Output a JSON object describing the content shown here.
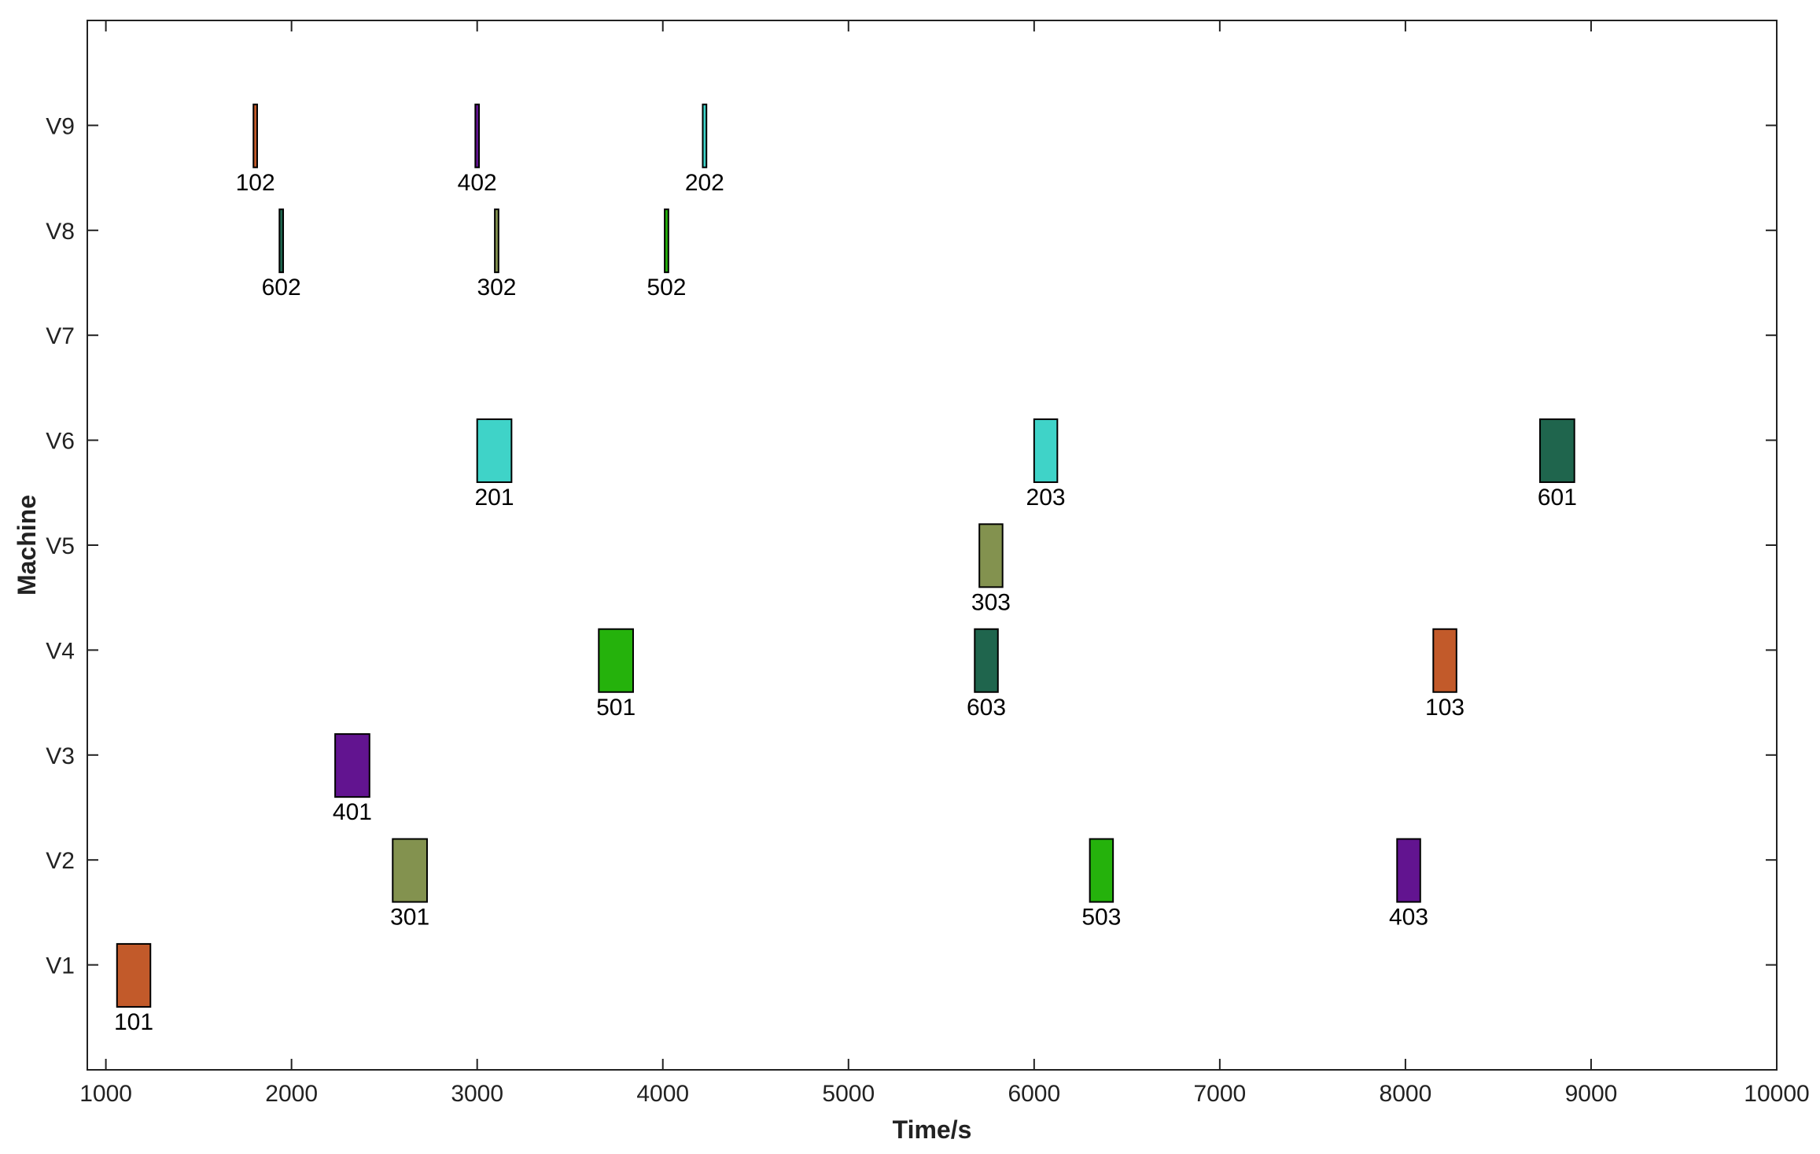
{
  "chart_data": {
    "type": "gantt",
    "title": "",
    "xlabel": "Time/s",
    "ylabel": "Machine",
    "xlim": [
      900,
      10000
    ],
    "ylim": [
      0,
      10
    ],
    "x_ticks": [
      1000,
      2000,
      3000,
      4000,
      5000,
      6000,
      7000,
      8000,
      9000,
      10000
    ],
    "y_categories": [
      "V1",
      "V2",
      "V3",
      "V4",
      "V5",
      "V6",
      "V7",
      "V8",
      "V9"
    ],
    "grid": false,
    "colors": {
      "job1": "#c25a2a",
      "job2": "#3fd3c8",
      "job3": "#83924f",
      "job4": "#621490",
      "job5": "#25b20c",
      "job6": "#1f654d"
    },
    "tasks": [
      {
        "label": "101",
        "machine": "V1",
        "start": 1060,
        "end": 1240,
        "color": "job1"
      },
      {
        "label": "102",
        "machine": "V9",
        "start": 1795,
        "end": 1815,
        "color": "job1"
      },
      {
        "label": "103",
        "machine": "V4",
        "start": 8150,
        "end": 8275,
        "color": "job1"
      },
      {
        "label": "201",
        "machine": "V6",
        "start": 3000,
        "end": 3185,
        "color": "job2"
      },
      {
        "label": "202",
        "machine": "V9",
        "start": 4215,
        "end": 4235,
        "color": "job2"
      },
      {
        "label": "203",
        "machine": "V6",
        "start": 6000,
        "end": 6125,
        "color": "job2"
      },
      {
        "label": "301",
        "machine": "V2",
        "start": 2545,
        "end": 2730,
        "color": "job3"
      },
      {
        "label": "302",
        "machine": "V8",
        "start": 3095,
        "end": 3115,
        "color": "job3"
      },
      {
        "label": "303",
        "machine": "V5",
        "start": 5705,
        "end": 5830,
        "color": "job3"
      },
      {
        "label": "401",
        "machine": "V3",
        "start": 2235,
        "end": 2420,
        "color": "job4"
      },
      {
        "label": "402",
        "machine": "V9",
        "start": 2990,
        "end": 3010,
        "color": "job4"
      },
      {
        "label": "403",
        "machine": "V2",
        "start": 7955,
        "end": 8080,
        "color": "job4"
      },
      {
        "label": "501",
        "machine": "V4",
        "start": 3655,
        "end": 3840,
        "color": "job5"
      },
      {
        "label": "502",
        "machine": "V8",
        "start": 4010,
        "end": 4030,
        "color": "job5"
      },
      {
        "label": "503",
        "machine": "V2",
        "start": 6300,
        "end": 6425,
        "color": "job5"
      },
      {
        "label": "601",
        "machine": "V6",
        "start": 8725,
        "end": 8910,
        "color": "job6"
      },
      {
        "label": "602",
        "machine": "V8",
        "start": 1935,
        "end": 1955,
        "color": "job6"
      },
      {
        "label": "603",
        "machine": "V4",
        "start": 5680,
        "end": 5805,
        "color": "job6"
      }
    ]
  }
}
